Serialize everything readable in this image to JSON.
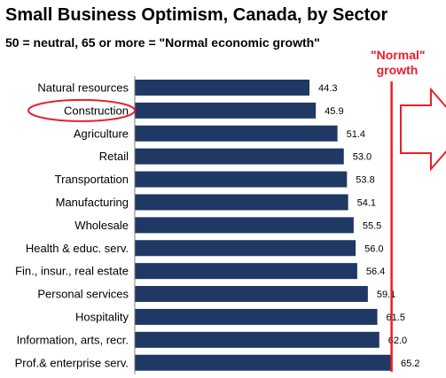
{
  "header": {
    "title": "Small Business Optimism, Canada, by Sector",
    "subtitle": "50 = neutral, 65 or more = \"Normal economic growth\""
  },
  "annotation": {
    "normal_line1": "\"Normal\"",
    "normal_line2": "growth",
    "threshold": 65,
    "highlighted_category": "Construction",
    "color": "#e8202a"
  },
  "colors": {
    "bar": "#1f3864",
    "highlight": "#e8202a"
  },
  "chart_data": {
    "type": "bar",
    "orientation": "horizontal",
    "categories": [
      "Natural resources",
      "Construction",
      "Agriculture",
      "Retail",
      "Transportation",
      "Manufacturing",
      "Wholesale",
      "Health & educ. serv.",
      "Fin., insur., real estate",
      "Personal services",
      "Hospitality",
      "Information, arts, recr.",
      "Prof.& enterprise serv."
    ],
    "values": [
      44.3,
      45.9,
      51.4,
      53.0,
      53.8,
      54.1,
      55.5,
      56.0,
      56.4,
      59.1,
      61.5,
      62.0,
      65.2
    ],
    "value_labels": [
      "44.3",
      "45.9",
      "51.4",
      "53.0",
      "53.8",
      "54.1",
      "55.5",
      "56.0",
      "56.4",
      "59.1",
      "61.5",
      "62.0",
      "65.2"
    ],
    "title": "Small Business Optimism, Canada, by Sector",
    "xlabel": "",
    "ylabel": "",
    "grid": false,
    "legend": "none"
  }
}
